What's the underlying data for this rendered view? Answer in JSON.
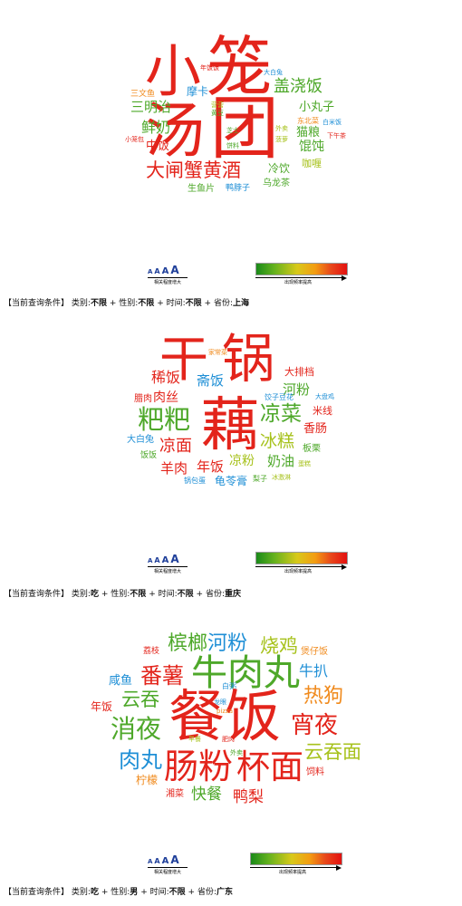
{
  "palette": {
    "red": "#e3241b",
    "orange": "#f08a1c",
    "green": "#4ea82a",
    "yellowgreen": "#a7c21c",
    "blue": "#1f8fd6",
    "darkblue": "#1f3f9a"
  },
  "legend": {
    "aaa": [
      "A",
      "A",
      "A",
      "A"
    ],
    "left_label": "相关程度增大",
    "right_label": "出现频率提高"
  },
  "condition_template": {
    "prefix": "【当前查询条件】",
    "category_label": "类别:",
    "gender_label": "性别:",
    "time_label": "时间:",
    "province_label": "省份:",
    "sep": "+"
  },
  "panels": [
    {
      "words": [
        {
          "text": "小",
          "color": "red"
        },
        {
          "text": "笼",
          "color": "red"
        },
        {
          "text": "汤",
          "color": "red"
        },
        {
          "text": "团",
          "color": "red"
        },
        {
          "text": "年饭饭",
          "color": "red"
        },
        {
          "text": "大白兔",
          "color": "blue"
        },
        {
          "text": "摩卡",
          "color": "blue"
        },
        {
          "text": "盖浇饭",
          "color": "green"
        },
        {
          "text": "三文鱼",
          "color": "orange"
        },
        {
          "text": "三明治",
          "color": "green"
        },
        {
          "text": "营营",
          "color": "yellowgreen"
        },
        {
          "text": "黄豆",
          "color": "green"
        },
        {
          "text": "小丸子",
          "color": "green"
        },
        {
          "text": "东北菜",
          "color": "orange"
        },
        {
          "text": "白米饭",
          "color": "blue"
        },
        {
          "text": "鲜奶",
          "color": "green"
        },
        {
          "text": "猫粮",
          "color": "green"
        },
        {
          "text": "小笼包",
          "color": "red"
        },
        {
          "text": "中饭",
          "color": "red"
        },
        {
          "text": "芝士",
          "color": "green"
        },
        {
          "text": "外卖",
          "color": "yellowgreen"
        },
        {
          "text": "下午茶",
          "color": "red"
        },
        {
          "text": "馄饨",
          "color": "green"
        },
        {
          "text": "饼料",
          "color": "green"
        },
        {
          "text": "菠萝",
          "color": "yellowgreen"
        },
        {
          "text": "大闸蟹黄酒",
          "color": "red"
        },
        {
          "text": "冷饮",
          "color": "green"
        },
        {
          "text": "咖喱",
          "color": "yellowgreen"
        },
        {
          "text": "乌龙茶",
          "color": "green"
        },
        {
          "text": "生鱼片",
          "color": "green"
        },
        {
          "text": "鸭脖子",
          "color": "blue"
        }
      ],
      "condition": {
        "category": "不限",
        "gender": "不限",
        "time": "不限",
        "province": "上海"
      }
    },
    {
      "words": [
        {
          "text": "干",
          "color": "red"
        },
        {
          "text": "锅",
          "color": "red"
        },
        {
          "text": "家常菜",
          "color": "orange"
        },
        {
          "text": "大排档",
          "color": "red"
        },
        {
          "text": "稀饭",
          "color": "red"
        },
        {
          "text": "斋饭",
          "color": "blue"
        },
        {
          "text": "河粉",
          "color": "green"
        },
        {
          "text": "腊肉",
          "color": "red"
        },
        {
          "text": "肉丝",
          "color": "red"
        },
        {
          "text": "饺子豆花",
          "color": "blue"
        },
        {
          "text": "大盘鸡",
          "color": "blue"
        },
        {
          "text": "藕",
          "color": "red"
        },
        {
          "text": "粑粑",
          "color": "green"
        },
        {
          "text": "凉菜",
          "color": "green"
        },
        {
          "text": "米线",
          "color": "red"
        },
        {
          "text": "香肠",
          "color": "red"
        },
        {
          "text": "大白兔",
          "color": "blue"
        },
        {
          "text": "凉面",
          "color": "red"
        },
        {
          "text": "冰糕",
          "color": "yellowgreen"
        },
        {
          "text": "板栗",
          "color": "green"
        },
        {
          "text": "饭饭",
          "color": "green"
        },
        {
          "text": "羊肉",
          "color": "red"
        },
        {
          "text": "年饭",
          "color": "red"
        },
        {
          "text": "凉粉",
          "color": "yellowgreen"
        },
        {
          "text": "奶油",
          "color": "green"
        },
        {
          "text": "蛋糕",
          "color": "yellowgreen"
        },
        {
          "text": "锅包蛋",
          "color": "blue"
        },
        {
          "text": "龟苓膏",
          "color": "blue"
        },
        {
          "text": "梨子",
          "color": "green"
        },
        {
          "text": "冰激淋",
          "color": "yellowgreen"
        }
      ],
      "condition": {
        "category": "吃",
        "gender": "不限",
        "time": "不限",
        "province": "重庆"
      }
    },
    {
      "words": [
        {
          "text": "槟榔",
          "color": "green"
        },
        {
          "text": "河粉",
          "color": "blue"
        },
        {
          "text": "烧鸡",
          "color": "yellowgreen"
        },
        {
          "text": "荔枝",
          "color": "red"
        },
        {
          "text": "煲仔饭",
          "color": "orange"
        },
        {
          "text": "咸鱼",
          "color": "blue"
        },
        {
          "text": "番薯",
          "color": "red"
        },
        {
          "text": "牛肉丸",
          "color": "green"
        },
        {
          "text": "牛扒",
          "color": "blue"
        },
        {
          "text": "白粥",
          "color": "blue"
        },
        {
          "text": "年饭",
          "color": "red"
        },
        {
          "text": "云吞",
          "color": "green"
        },
        {
          "text": "热狗",
          "color": "orange"
        },
        {
          "text": "龙眼",
          "color": "blue"
        },
        {
          "text": "餐饭",
          "color": "red"
        },
        {
          "text": "pizza",
          "color": "orange"
        },
        {
          "text": "消夜",
          "color": "green"
        },
        {
          "text": "宵夜",
          "color": "red"
        },
        {
          "text": "早餐",
          "color": "yellowgreen"
        },
        {
          "text": "肥肉",
          "color": "red"
        },
        {
          "text": "云吞面",
          "color": "yellowgreen"
        },
        {
          "text": "外卖",
          "color": "green"
        },
        {
          "text": "肉丸",
          "color": "blue"
        },
        {
          "text": "肠粉",
          "color": "red"
        },
        {
          "text": "杯面",
          "color": "red"
        },
        {
          "text": "柠檬",
          "color": "orange"
        },
        {
          "text": "饲料",
          "color": "red"
        },
        {
          "text": "湘菜",
          "color": "red"
        },
        {
          "text": "快餐",
          "color": "green"
        },
        {
          "text": "鸭梨",
          "color": "red"
        }
      ],
      "condition": {
        "category": "吃",
        "gender": "男",
        "time": "不限",
        "province": "广东"
      }
    }
  ]
}
